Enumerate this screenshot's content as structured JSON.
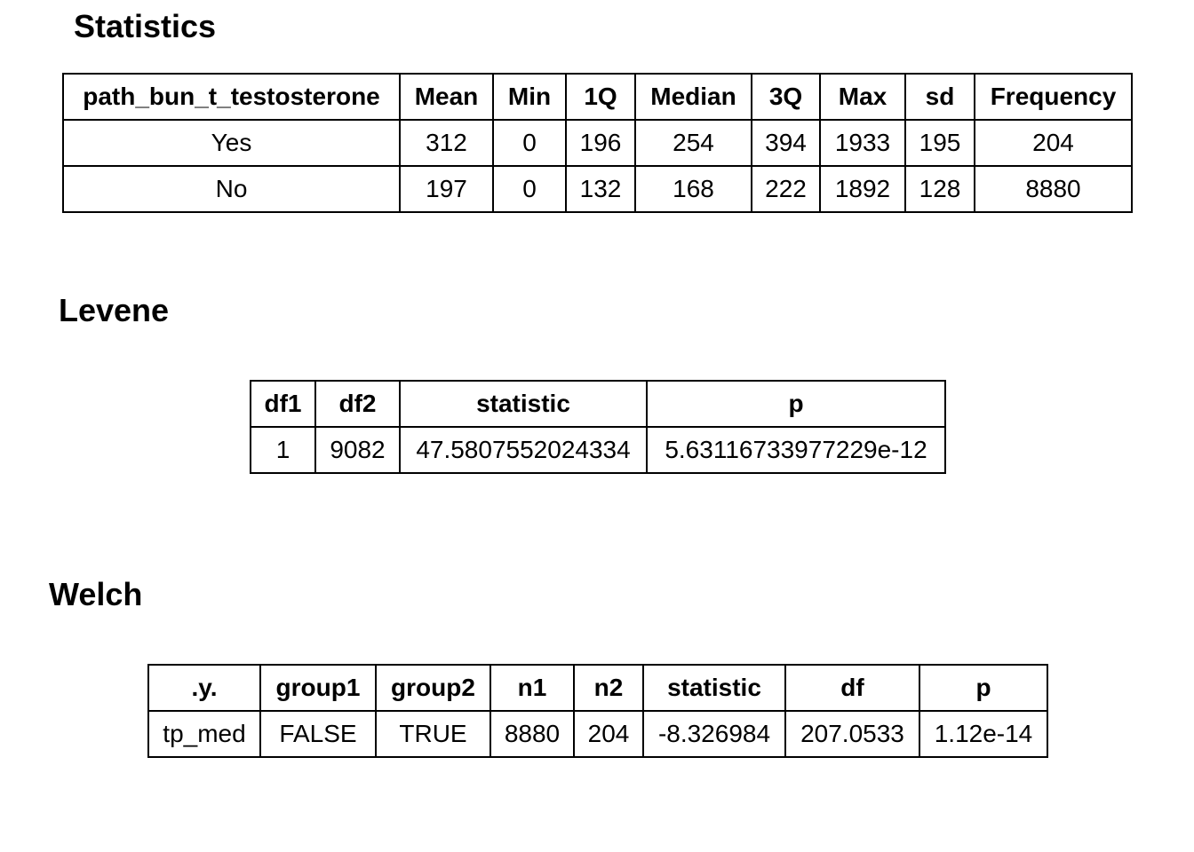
{
  "statistics": {
    "title": "Statistics",
    "headers": [
      "path_bun_t_testosterone",
      "Mean",
      "Min",
      "1Q",
      "Median",
      "3Q",
      "Max",
      "sd",
      "Frequency"
    ],
    "rows": [
      [
        "Yes",
        "312",
        "0",
        "196",
        "254",
        "394",
        "1933",
        "195",
        "204"
      ],
      [
        "No",
        "197",
        "0",
        "132",
        "168",
        "222",
        "1892",
        "128",
        "8880"
      ]
    ]
  },
  "levene": {
    "title": "Levene",
    "headers": [
      "df1",
      "df2",
      "statistic",
      "p"
    ],
    "rows": [
      [
        "1",
        "9082",
        "47.5807552024334",
        "5.63116733977229e-12"
      ]
    ]
  },
  "welch": {
    "title": "Welch",
    "headers": [
      ".y.",
      "group1",
      "group2",
      "n1",
      "n2",
      "statistic",
      "df",
      "p"
    ],
    "rows": [
      [
        "tp_med",
        "FALSE",
        "TRUE",
        "8880",
        "204",
        "-8.326984",
        "207.0533",
        "1.12e-14"
      ]
    ]
  }
}
